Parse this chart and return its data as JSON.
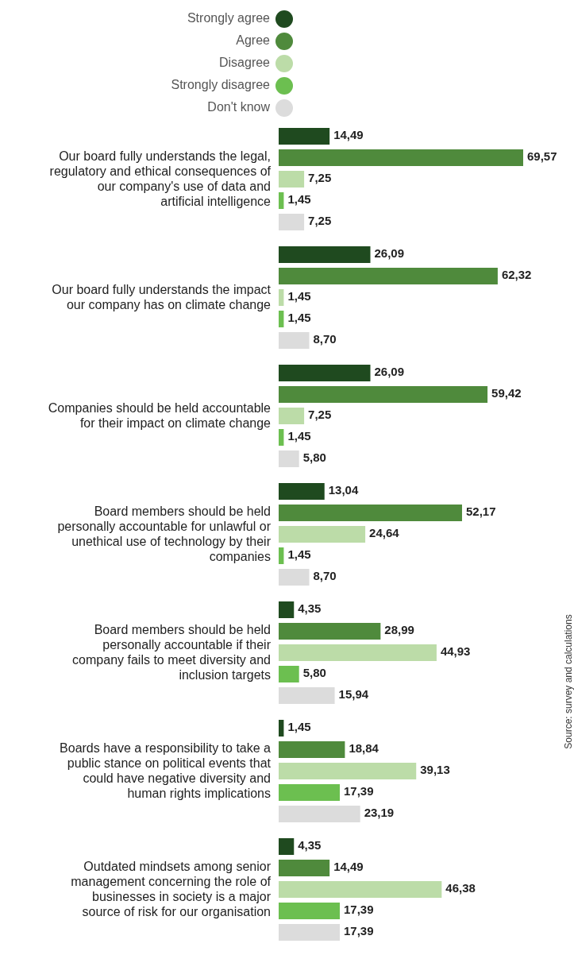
{
  "chart_data": {
    "type": "bar",
    "orientation": "horizontal",
    "legend": "top",
    "categories": [
      "Our board fully understands the legal, regulatory and ethical consequences of our company's use of data and artificial intelligence",
      "Our board fully understands the impact our company has on climate change",
      "Companies should be held accountable for their impact on climate change",
      "Board members should be held personally accountable for unlawful or unethical use of technology by their companies",
      "Board members should be held personally accountable if their company fails to meet diversity and inclusion targets",
      "Boards have a responsibility to take a public stance on political events that could have negative diversity and human rights implications",
      "Outdated mindsets among senior management concerning the role of businesses in society is a major source of risk for our organisation"
    ],
    "series": [
      {
        "name": "Strongly agree",
        "color": "#1f4a1f",
        "values": [
          14.49,
          26.09,
          26.09,
          13.04,
          4.35,
          1.45,
          4.35
        ],
        "value_labels": [
          "14,49",
          "26,09",
          "26,09",
          "13,04",
          "4,35",
          "1,45",
          "4,35"
        ]
      },
      {
        "name": "Agree",
        "color": "#4f8a3c",
        "values": [
          69.57,
          62.32,
          59.42,
          52.17,
          28.99,
          18.84,
          14.49
        ],
        "value_labels": [
          "69,57",
          "62,32",
          "59,42",
          "52,17",
          "28,99",
          "18,84",
          "14,49"
        ]
      },
      {
        "name": "Disagree",
        "color": "#bcdca8",
        "values": [
          7.25,
          1.45,
          7.25,
          24.64,
          44.93,
          39.13,
          46.38
        ],
        "value_labels": [
          "7,25",
          "1,45",
          "7,25",
          "24,64",
          "44,93",
          "39,13",
          "46,38"
        ]
      },
      {
        "name": "Strongly disagree",
        "color": "#6cbf50",
        "values": [
          1.45,
          1.45,
          1.45,
          1.45,
          5.8,
          17.39,
          17.39
        ],
        "value_labels": [
          "1,45",
          "1,45",
          "1,45",
          "1,45",
          "5,80",
          "17,39",
          "17,39"
        ]
      },
      {
        "name": "Don't know",
        "color": "#dcdcdc",
        "values": [
          7.25,
          8.7,
          5.8,
          8.7,
          15.94,
          23.19,
          17.39
        ],
        "value_labels": [
          "7,25",
          "8,70",
          "5,80",
          "8,70",
          "15,94",
          "23,19",
          "17,39"
        ]
      }
    ],
    "annotations": [
      "Source: survey and calculations"
    ]
  }
}
